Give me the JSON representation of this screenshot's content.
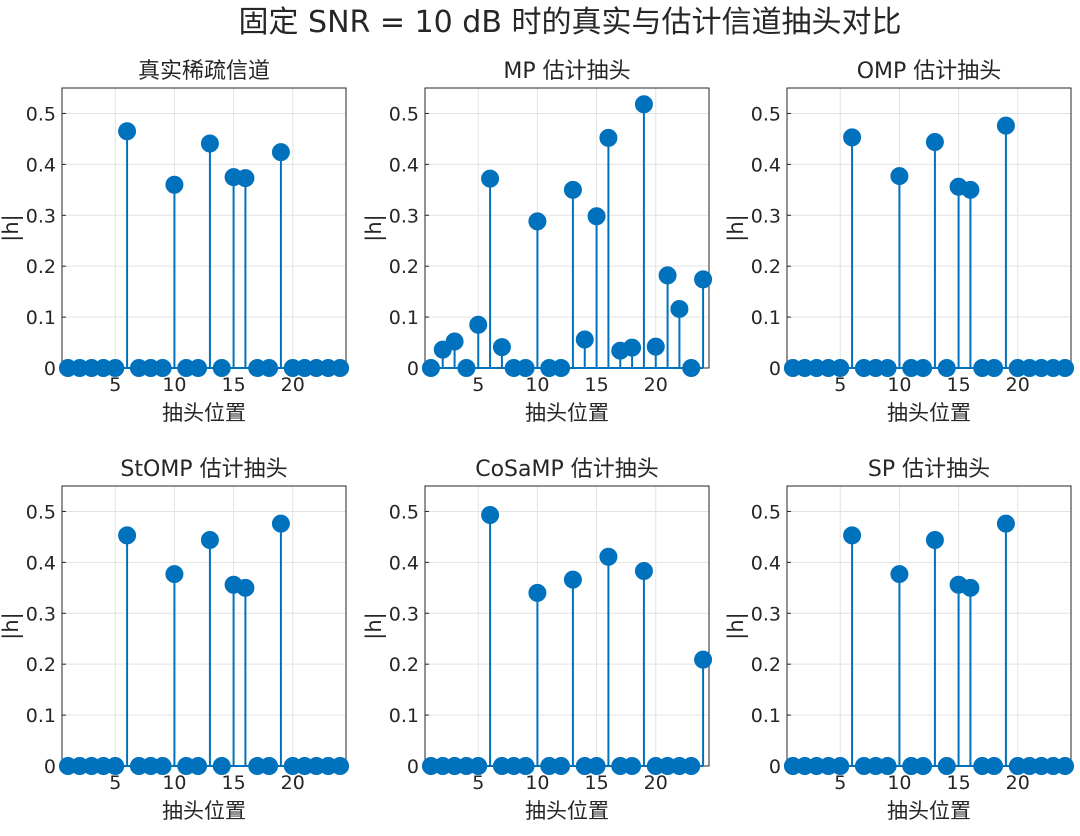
{
  "figure": {
    "title": "固定 SNR = 10 dB 时的真实与估计信道抽头对比"
  },
  "colors": {
    "stem": "#0072BD",
    "axis": "#262626",
    "grid": "#e3e3e3",
    "background": "#ffffff"
  },
  "chart_data": [
    {
      "type": "stem",
      "title": "真实稀疏信道",
      "xlabel": "抽头位置",
      "ylabel": "|h|",
      "xlim": [
        0.5,
        24.5
      ],
      "ylim": [
        0,
        0.55
      ],
      "xticks": [
        5,
        10,
        15,
        20
      ],
      "yticks": [
        0,
        0.1,
        0.2,
        0.3,
        0.4,
        0.5
      ],
      "grid": true,
      "x": [
        1,
        2,
        3,
        4,
        5,
        6,
        7,
        8,
        9,
        10,
        11,
        12,
        13,
        14,
        15,
        16,
        17,
        18,
        19,
        20,
        21,
        22,
        23,
        24
      ],
      "values": [
        0,
        0,
        0,
        0,
        0,
        0.465,
        0,
        0,
        0,
        0.36,
        0,
        0,
        0.441,
        0,
        0.375,
        0.373,
        0,
        0,
        0.424,
        0,
        0,
        0,
        0,
        0
      ]
    },
    {
      "type": "stem",
      "title": "MP 估计抽头",
      "xlabel": "抽头位置",
      "ylabel": "|h|",
      "xlim": [
        0.5,
        24.5
      ],
      "ylim": [
        0,
        0.55
      ],
      "xticks": [
        5,
        10,
        15,
        20
      ],
      "yticks": [
        0,
        0.1,
        0.2,
        0.3,
        0.4,
        0.5
      ],
      "grid": true,
      "x": [
        1,
        2,
        3,
        4,
        5,
        6,
        7,
        8,
        9,
        10,
        11,
        12,
        13,
        14,
        15,
        16,
        17,
        18,
        19,
        20,
        21,
        22,
        23,
        24
      ],
      "values": [
        0,
        0.036,
        0.052,
        0,
        0.085,
        0.372,
        0.041,
        0,
        0,
        0.288,
        0,
        0,
        0.35,
        0.056,
        0.298,
        0.452,
        0.034,
        0.04,
        0.518,
        0.042,
        0.182,
        0.116,
        0,
        0.174
      ]
    },
    {
      "type": "stem",
      "title": "OMP 估计抽头",
      "xlabel": "抽头位置",
      "ylabel": "|h|",
      "xlim": [
        0.5,
        24.5
      ],
      "ylim": [
        0,
        0.55
      ],
      "xticks": [
        5,
        10,
        15,
        20
      ],
      "yticks": [
        0,
        0.1,
        0.2,
        0.3,
        0.4,
        0.5
      ],
      "grid": true,
      "x": [
        1,
        2,
        3,
        4,
        5,
        6,
        7,
        8,
        9,
        10,
        11,
        12,
        13,
        14,
        15,
        16,
        17,
        18,
        19,
        20,
        21,
        22,
        23,
        24
      ],
      "values": [
        0,
        0,
        0,
        0,
        0,
        0.453,
        0,
        0,
        0,
        0.377,
        0,
        0,
        0.444,
        0,
        0.356,
        0.35,
        0,
        0,
        0.476,
        0,
        0,
        0,
        0,
        0
      ]
    },
    {
      "type": "stem",
      "title": "StOMP 估计抽头",
      "xlabel": "抽头位置",
      "ylabel": "|h|",
      "xlim": [
        0.5,
        24.5
      ],
      "ylim": [
        0,
        0.55
      ],
      "xticks": [
        5,
        10,
        15,
        20
      ],
      "yticks": [
        0,
        0.1,
        0.2,
        0.3,
        0.4,
        0.5
      ],
      "grid": true,
      "x": [
        1,
        2,
        3,
        4,
        5,
        6,
        7,
        8,
        9,
        10,
        11,
        12,
        13,
        14,
        15,
        16,
        17,
        18,
        19,
        20,
        21,
        22,
        23,
        24
      ],
      "values": [
        0,
        0,
        0,
        0,
        0,
        0.453,
        0,
        0,
        0,
        0.377,
        0,
        0,
        0.444,
        0,
        0.356,
        0.35,
        0,
        0,
        0.476,
        0,
        0,
        0,
        0,
        0
      ]
    },
    {
      "type": "stem",
      "title": "CoSaMP 估计抽头",
      "xlabel": "抽头位置",
      "ylabel": "|h|",
      "xlim": [
        0.5,
        24.5
      ],
      "ylim": [
        0,
        0.55
      ],
      "xticks": [
        5,
        10,
        15,
        20
      ],
      "yticks": [
        0,
        0.1,
        0.2,
        0.3,
        0.4,
        0.5
      ],
      "grid": true,
      "x": [
        1,
        2,
        3,
        4,
        5,
        6,
        7,
        8,
        9,
        10,
        11,
        12,
        13,
        14,
        15,
        16,
        17,
        18,
        19,
        20,
        21,
        22,
        23,
        24
      ],
      "values": [
        0,
        0,
        0,
        0,
        0,
        0.493,
        0,
        0,
        0,
        0.34,
        0,
        0,
        0.366,
        0,
        0,
        0.411,
        0,
        0,
        0.383,
        0,
        0,
        0,
        0,
        0.209
      ]
    },
    {
      "type": "stem",
      "title": "SP 估计抽头",
      "xlabel": "抽头位置",
      "ylabel": "|h|",
      "xlim": [
        0.5,
        24.5
      ],
      "ylim": [
        0,
        0.55
      ],
      "xticks": [
        5,
        10,
        15,
        20
      ],
      "yticks": [
        0,
        0.1,
        0.2,
        0.3,
        0.4,
        0.5
      ],
      "grid": true,
      "x": [
        1,
        2,
        3,
        4,
        5,
        6,
        7,
        8,
        9,
        10,
        11,
        12,
        13,
        14,
        15,
        16,
        17,
        18,
        19,
        20,
        21,
        22,
        23,
        24
      ],
      "values": [
        0,
        0,
        0,
        0,
        0,
        0.453,
        0,
        0,
        0,
        0.377,
        0,
        0,
        0.444,
        0,
        0.356,
        0.35,
        0,
        0,
        0.476,
        0,
        0,
        0,
        0,
        0
      ]
    }
  ]
}
